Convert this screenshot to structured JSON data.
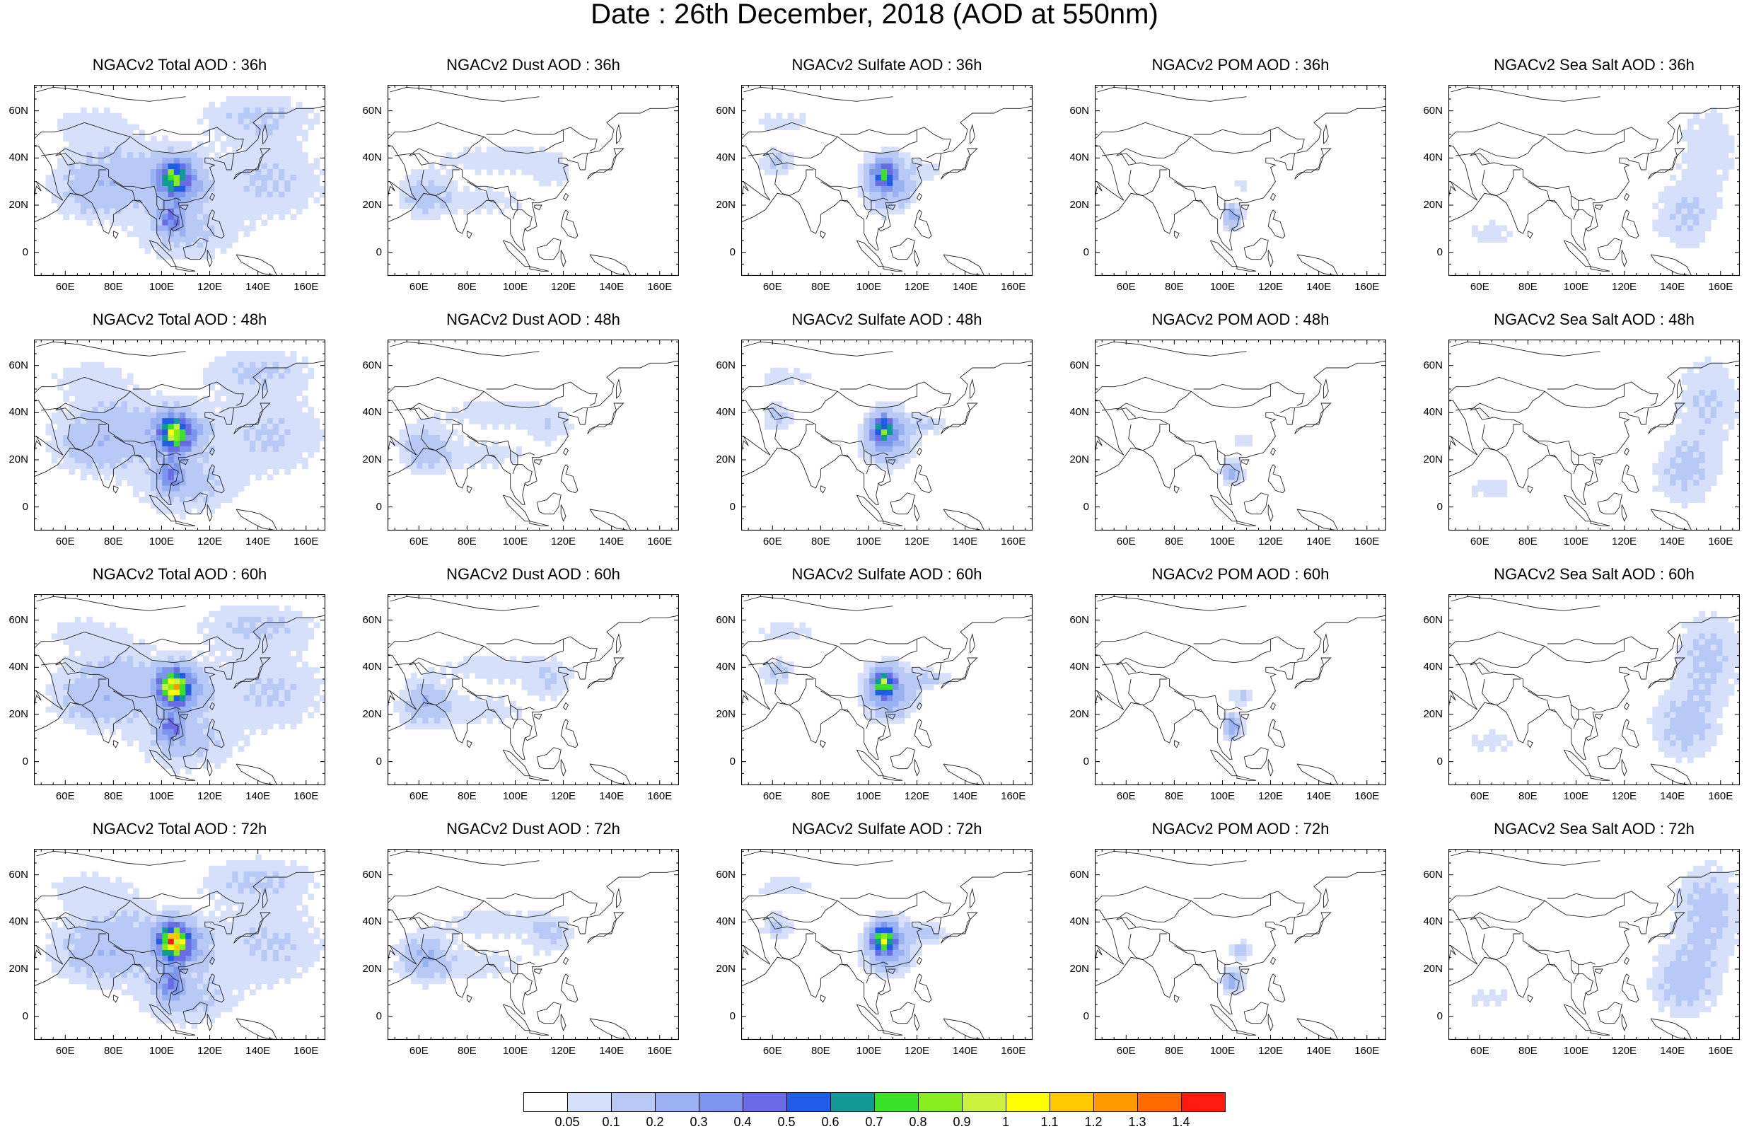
{
  "title": "Date : 26th December, 2018 (AOD at 550nm)",
  "lat_labels": [
    "60N",
    "40N",
    "20N",
    "0"
  ],
  "lon_labels": [
    "60E",
    "80E",
    "100E",
    "120E",
    "140E",
    "160E"
  ],
  "panels": [
    {
      "title": "NGACv2 Total AOD : 36h",
      "species": "total",
      "hour": 36
    },
    {
      "title": "NGACv2 Dust AOD : 36h",
      "species": "dust",
      "hour": 36
    },
    {
      "title": "NGACv2 Sulfate AOD : 36h",
      "species": "sulfate",
      "hour": 36
    },
    {
      "title": "NGACv2 POM AOD : 36h",
      "species": "pom",
      "hour": 36
    },
    {
      "title": "NGACv2 Sea Salt AOD : 36h",
      "species": "seasalt",
      "hour": 36
    },
    {
      "title": "NGACv2 Total AOD : 48h",
      "species": "total",
      "hour": 48
    },
    {
      "title": "NGACv2 Dust AOD : 48h",
      "species": "dust",
      "hour": 48
    },
    {
      "title": "NGACv2 Sulfate AOD : 48h",
      "species": "sulfate",
      "hour": 48
    },
    {
      "title": "NGACv2 POM AOD : 48h",
      "species": "pom",
      "hour": 48
    },
    {
      "title": "NGACv2 Sea Salt AOD : 48h",
      "species": "seasalt",
      "hour": 48
    },
    {
      "title": "NGACv2 Total AOD : 60h",
      "species": "total",
      "hour": 60
    },
    {
      "title": "NGACv2 Dust AOD : 60h",
      "species": "dust",
      "hour": 60
    },
    {
      "title": "NGACv2 Sulfate AOD : 60h",
      "species": "sulfate",
      "hour": 60
    },
    {
      "title": "NGACv2 POM AOD : 60h",
      "species": "pom",
      "hour": 60
    },
    {
      "title": "NGACv2 Sea Salt AOD : 60h",
      "species": "seasalt",
      "hour": 60
    },
    {
      "title": "NGACv2 Total AOD : 72h",
      "species": "total",
      "hour": 72
    },
    {
      "title": "NGACv2 Dust AOD : 72h",
      "species": "dust",
      "hour": 72
    },
    {
      "title": "NGACv2 Sulfate AOD : 72h",
      "species": "sulfate",
      "hour": 72
    },
    {
      "title": "NGACv2 POM AOD : 72h",
      "species": "pom",
      "hour": 72
    },
    {
      "title": "NGACv2 Sea Salt  AOD : 72h",
      "species": "seasalt",
      "hour": 72
    }
  ],
  "colorbar": {
    "labels": [
      "0.05",
      "0.1",
      "0.2",
      "0.3",
      "0.4",
      "0.5",
      "0.6",
      "0.7",
      "0.8",
      "0.9",
      "1",
      "1.1",
      "1.2",
      "1.3",
      "1.4"
    ],
    "colors": [
      "#ffffff",
      "#d6e0fb",
      "#b8c9f6",
      "#9ab2f1",
      "#7d95ec",
      "#6a6be6",
      "#1f5ce8",
      "#119a96",
      "#3ae32a",
      "#89ec1c",
      "#cdf23e",
      "#ffff00",
      "#ffc800",
      "#ff9a00",
      "#ff6a00",
      "#ff1a10"
    ]
  }
}
